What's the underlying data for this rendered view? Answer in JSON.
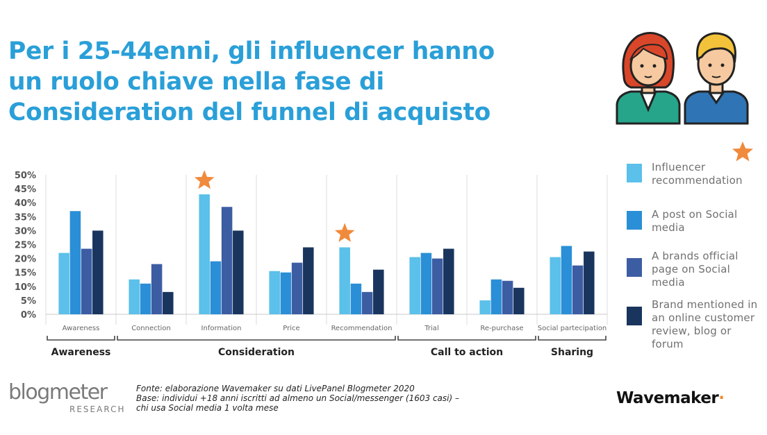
{
  "header": {
    "title_lines": [
      "Per i 25-44enni, gli influencer hanno",
      "un ruolo chiave nella fase di",
      "Consideration del funnel di acquisto"
    ]
  },
  "chart_data": {
    "type": "bar",
    "categories": [
      "Awareness",
      "Connection",
      "Information",
      "Price",
      "Recommendation",
      "Trial",
      "Re-purchase",
      "Social partecipation"
    ],
    "series": [
      {
        "name": "Influencer recommendation",
        "values": [
          22,
          12.5,
          43,
          15.5,
          24,
          20.5,
          5,
          20.5
        ]
      },
      {
        "name": "A post on Social media",
        "values": [
          37,
          11,
          19,
          15,
          11,
          22,
          12.5,
          24.5
        ]
      },
      {
        "name": "A brands official page on Social media",
        "values": [
          23.5,
          18,
          38.5,
          18.5,
          8,
          20,
          12,
          17.5
        ]
      },
      {
        "name": "Brand mentioned in an online customer review, blog or forum",
        "values": [
          30,
          8,
          30,
          24,
          16,
          23.5,
          9.5,
          22.5
        ]
      }
    ],
    "colors": [
      "#5bc0ea",
      "#2a8fd6",
      "#3d5da3",
      "#19355e"
    ],
    "yticks": [
      "0%",
      "5%",
      "10%",
      "15%",
      "20%",
      "25%",
      "30%",
      "35%",
      "40%",
      "45%",
      "50%"
    ],
    "ylim": [
      0,
      50
    ],
    "grid": false,
    "legend": "right",
    "highlighted_categories": [
      "Information",
      "Recommendation"
    ],
    "groups": [
      {
        "label": "Awareness",
        "categories": [
          "Awareness"
        ]
      },
      {
        "label": "Consideration",
        "categories": [
          "Connection",
          "Information",
          "Price",
          "Recommendation"
        ]
      },
      {
        "label": "Call to action",
        "categories": [
          "Trial",
          "Re-purchase"
        ]
      },
      {
        "label": "Sharing",
        "categories": [
          "Social partecipation"
        ]
      }
    ]
  },
  "legend": {
    "items": [
      {
        "label": "Influencer recommendation",
        "color": "#5bc0ea"
      },
      {
        "label": "A post on Social media",
        "color": "#2a8fd6"
      },
      {
        "label": "A brands official page on Social media",
        "color": "#3d5da3"
      },
      {
        "label": "Brand mentioned in an online customer review, blog or forum",
        "color": "#19355e"
      }
    ]
  },
  "accent": {
    "star_color": "#f08a3c",
    "title_color": "#2a9fd8"
  },
  "footer": {
    "blogmeter_logo": "blogmeter",
    "blogmeter_sub": "RESEARCH",
    "source_lines": [
      "Fonte: elaborazione Wavemaker su dati LivePanel Blogmeter 2020",
      "Base: individui +18 anni iscritti ad almeno un Social/messenger (1603 casi) –",
      "chi usa Social media 1 volta mese"
    ],
    "wavemaker_logo": "Wavemaker"
  }
}
